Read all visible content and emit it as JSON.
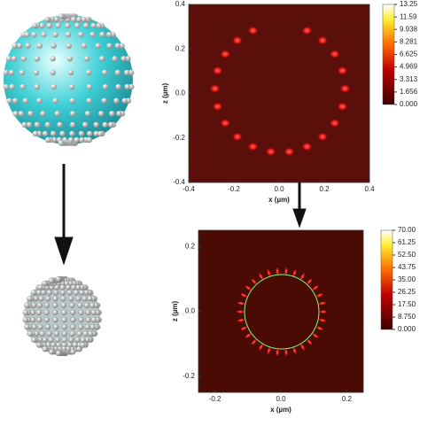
{
  "chart_data": [
    {
      "type": "heatmap",
      "x_label": "x (µm)",
      "y_label": "z (µm)",
      "xlim": [
        -0.4,
        0.4
      ],
      "xticks": [
        -0.4,
        -0.2,
        {
          "value": 0,
          "label": "0.0"
        },
        0.2,
        0.4
      ],
      "ylim": [
        -0.4,
        0.4
      ],
      "yticks": [
        -0.4,
        -0.2,
        {
          "value": 0,
          "label": "0.0"
        },
        0.2,
        0.4
      ],
      "clim": [
        0,
        13.25
      ],
      "cticks": [
        13.25,
        11.59,
        9.938,
        8.281,
        6.625,
        4.969,
        3.313,
        1.656,
        {
          "value": 0,
          "label": "0.000"
        }
      ]
    },
    {
      "type": "heatmap",
      "x_label": "x (µm)",
      "y_label": "z (µm)",
      "xlim": [
        -0.25,
        0.25
      ],
      "xticks": [
        -0.2,
        {
          "value": 0,
          "label": "0.0"
        },
        0.2
      ],
      "ylim": [
        -0.25,
        0.25
      ],
      "yticks": [
        -0.2,
        {
          "value": 0,
          "label": "0.0"
        },
        0.2
      ],
      "clim": [
        0,
        70
      ],
      "cticks": [
        {
          "value": 70,
          "label": "70.00"
        },
        61.25,
        {
          "value": 52.5,
          "label": "52.50"
        },
        43.75,
        {
          "value": 35,
          "label": "35.00"
        },
        26.25,
        {
          "value": 17.5,
          "label": "17.50"
        },
        {
          "value": 8.75,
          "label": "8.750"
        },
        {
          "value": 0,
          "label": "0.000"
        }
      ]
    }
  ]
}
